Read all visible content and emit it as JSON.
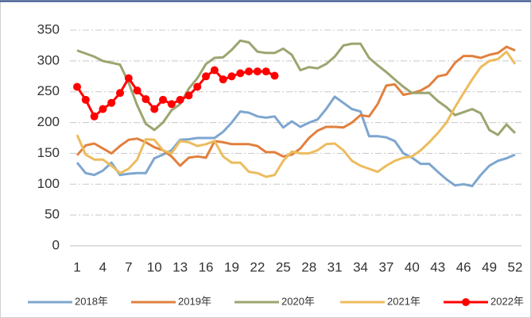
{
  "chart_data": {
    "type": "line",
    "categories": [
      1,
      null,
      null,
      4,
      null,
      null,
      7,
      null,
      null,
      10,
      null,
      null,
      13,
      null,
      null,
      16,
      null,
      null,
      19,
      null,
      null,
      22,
      null,
      null,
      25,
      null,
      null,
      28,
      null,
      null,
      31,
      null,
      null,
      34,
      null,
      null,
      37,
      null,
      null,
      40,
      null,
      null,
      43,
      null,
      null,
      46,
      null,
      null,
      49,
      null,
      null,
      52
    ],
    "ylim": [
      0,
      350
    ],
    "yticks": [
      0,
      50,
      100,
      150,
      200,
      250,
      300,
      350
    ],
    "grid": true,
    "legend": "bottom",
    "series": [
      {
        "name": "2018年",
        "color": "#7ea6cf",
        "marker": false,
        "values": [
          135,
          118,
          115,
          122,
          135,
          115,
          117,
          118,
          118,
          142,
          148,
          155,
          172,
          173,
          175,
          175,
          175,
          185,
          200,
          218,
          216,
          210,
          208,
          210,
          192,
          202,
          193,
          200,
          205,
          222,
          242,
          232,
          222,
          218,
          178,
          178,
          176,
          170,
          150,
          143,
          133,
          133,
          120,
          108,
          98,
          100,
          97,
          115,
          130,
          138,
          142,
          148
        ]
      },
      {
        "name": "2019年",
        "color": "#e1803e",
        "marker": false,
        "values": [
          147,
          163,
          166,
          158,
          150,
          162,
          172,
          174,
          168,
          160,
          155,
          145,
          130,
          143,
          145,
          143,
          170,
          168,
          165,
          165,
          165,
          162,
          152,
          152,
          145,
          148,
          158,
          175,
          187,
          193,
          193,
          192,
          200,
          212,
          210,
          230,
          260,
          262,
          245,
          248,
          252,
          260,
          275,
          278,
          297,
          308,
          308,
          305,
          310,
          313,
          323,
          317
        ]
      },
      {
        "name": "2020年",
        "color": "#9ba56f",
        "marker": false,
        "values": [
          317,
          312,
          307,
          300,
          297,
          294,
          265,
          228,
          198,
          188,
          200,
          220,
          230,
          255,
          272,
          295,
          305,
          306,
          318,
          333,
          330,
          315,
          313,
          313,
          320,
          310,
          285,
          290,
          288,
          295,
          307,
          325,
          328,
          328,
          305,
          293,
          282,
          270,
          258,
          248,
          248,
          248,
          235,
          225,
          212,
          217,
          222,
          215,
          188,
          180,
          197,
          183
        ]
      },
      {
        "name": "2021年",
        "color": "#ecbc5e",
        "marker": false,
        "values": [
          180,
          148,
          140,
          140,
          130,
          118,
          125,
          140,
          173,
          172,
          155,
          150,
          170,
          168,
          162,
          165,
          170,
          145,
          135,
          135,
          120,
          118,
          112,
          115,
          138,
          153,
          150,
          150,
          155,
          165,
          166,
          155,
          138,
          130,
          125,
          120,
          130,
          138,
          143,
          145,
          155,
          168,
          183,
          200,
          225,
          248,
          270,
          290,
          300,
          303,
          315,
          295
        ]
      },
      {
        "name": "2022年",
        "color": "#ff0000",
        "marker": true,
        "values": [
          258,
          237,
          210,
          222,
          232,
          248,
          272,
          252,
          238,
          222,
          237,
          230,
          237,
          244,
          258,
          275,
          285,
          270,
          275,
          280,
          283,
          283,
          283,
          276,
          null,
          null,
          null,
          null,
          null,
          null,
          null,
          null,
          null,
          null,
          null,
          null,
          null,
          null,
          null,
          null,
          null,
          null,
          null,
          null,
          null,
          null,
          null,
          null,
          null,
          null,
          null,
          null
        ]
      }
    ]
  }
}
